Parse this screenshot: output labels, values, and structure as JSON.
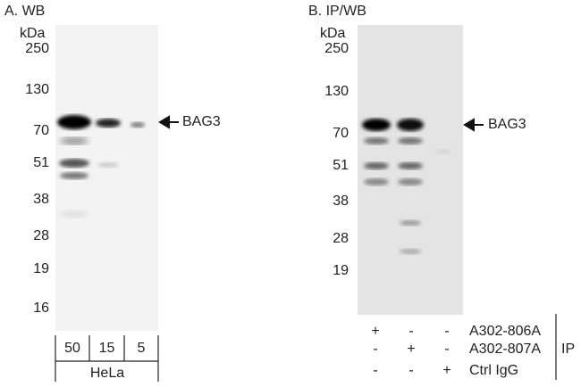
{
  "panel_a": {
    "title": "A. WB",
    "unit": "kDa",
    "markers": [
      250,
      130,
      70,
      51,
      38,
      28,
      19,
      16
    ],
    "target": "BAG3",
    "lanes": [
      50,
      15,
      5
    ],
    "cell_line": "HeLa"
  },
  "panel_b": {
    "title": "B. IP/WB",
    "unit": "kDa",
    "markers": [
      250,
      130,
      70,
      51,
      38,
      28,
      19
    ],
    "target": "BAG3",
    "ip_table": {
      "rows": [
        {
          "cells": [
            "+",
            "-",
            "-"
          ],
          "label": "A302-806A"
        },
        {
          "cells": [
            "-",
            "+",
            "-"
          ],
          "label": "A302-807A"
        },
        {
          "cells": [
            "-",
            "-",
            "+"
          ],
          "label": "Ctrl IgG"
        }
      ],
      "group_label": "IP"
    }
  }
}
